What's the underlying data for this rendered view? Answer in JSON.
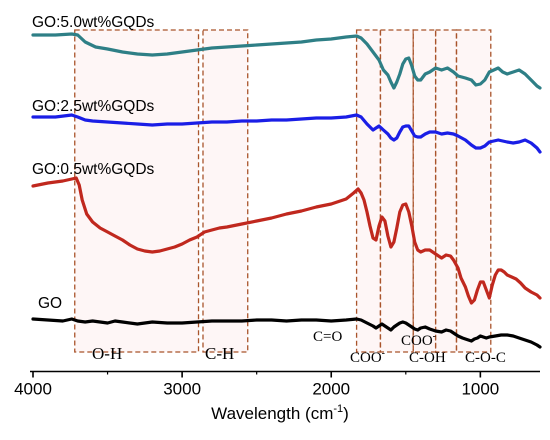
{
  "chart_data": {
    "type": "line",
    "title": "",
    "xlabel": "Wavelength (cm",
    "xlabel_sup": "-1",
    "xlabel_close": ")",
    "ylabel": "",
    "xlim": [
      4000,
      600
    ],
    "x_reversed": true,
    "x_ticks": [
      4000,
      3000,
      2000,
      1000
    ],
    "x_tick_labels": [
      "4000",
      "3000",
      "2000",
      "1000"
    ],
    "y_axis_visible": false,
    "series": [
      {
        "name": "GO:5.0wt%GQDs",
        "color": "#2e7f86",
        "points": [
          [
            4000,
            35
          ],
          [
            3850,
            35
          ],
          [
            3740,
            34
          ],
          [
            3700,
            35
          ],
          [
            3650,
            42
          ],
          [
            3580,
            47
          ],
          [
            3500,
            49
          ],
          [
            3400,
            52
          ],
          [
            3300,
            54
          ],
          [
            3200,
            55
          ],
          [
            3100,
            54
          ],
          [
            3000,
            52
          ],
          [
            2900,
            50
          ],
          [
            2800,
            48
          ],
          [
            2700,
            47
          ],
          [
            2600,
            46
          ],
          [
            2500,
            45
          ],
          [
            2400,
            44
          ],
          [
            2300,
            43
          ],
          [
            2200,
            42
          ],
          [
            2100,
            40
          ],
          [
            2000,
            39
          ],
          [
            1900,
            37
          ],
          [
            1830,
            36
          ],
          [
            1800,
            38
          ],
          [
            1760,
            44
          ],
          [
            1720,
            52
          ],
          [
            1700,
            56
          ],
          [
            1680,
            60
          ],
          [
            1650,
            70
          ],
          [
            1620,
            75
          ],
          [
            1600,
            82
          ],
          [
            1580,
            88
          ],
          [
            1560,
            82
          ],
          [
            1540,
            74
          ],
          [
            1520,
            64
          ],
          [
            1500,
            59
          ],
          [
            1480,
            58
          ],
          [
            1460,
            66
          ],
          [
            1440,
            76
          ],
          [
            1420,
            80
          ],
          [
            1400,
            80
          ],
          [
            1370,
            74
          ],
          [
            1340,
            72
          ],
          [
            1300,
            68
          ],
          [
            1260,
            70
          ],
          [
            1220,
            68
          ],
          [
            1180,
            72
          ],
          [
            1150,
            76
          ],
          [
            1100,
            78
          ],
          [
            1060,
            80
          ],
          [
            1030,
            85
          ],
          [
            1000,
            84
          ],
          [
            970,
            80
          ],
          [
            940,
            72
          ],
          [
            910,
            70
          ],
          [
            880,
            68
          ],
          [
            850,
            72
          ],
          [
            820,
            74
          ],
          [
            780,
            72
          ],
          [
            740,
            70
          ],
          [
            700,
            74
          ],
          [
            660,
            80
          ],
          [
            620,
            86
          ],
          [
            600,
            88
          ]
        ]
      },
      {
        "name": "GO:2.5wt%GQDs",
        "color": "#1a1ee6",
        "points": [
          [
            4000,
            117
          ],
          [
            3850,
            117
          ],
          [
            3740,
            115
          ],
          [
            3700,
            117
          ],
          [
            3650,
            120
          ],
          [
            3600,
            121
          ],
          [
            3500,
            122
          ],
          [
            3400,
            123
          ],
          [
            3300,
            124
          ],
          [
            3200,
            125
          ],
          [
            3100,
            124
          ],
          [
            3000,
            124
          ],
          [
            2900,
            123
          ],
          [
            2800,
            122
          ],
          [
            2700,
            122
          ],
          [
            2600,
            121
          ],
          [
            2500,
            121
          ],
          [
            2400,
            120
          ],
          [
            2300,
            120
          ],
          [
            2200,
            119
          ],
          [
            2100,
            118
          ],
          [
            2000,
            118
          ],
          [
            1900,
            117
          ],
          [
            1830,
            115
          ],
          [
            1800,
            117
          ],
          [
            1760,
            124
          ],
          [
            1720,
            130
          ],
          [
            1700,
            128
          ],
          [
            1680,
            126
          ],
          [
            1650,
            130
          ],
          [
            1620,
            134
          ],
          [
            1600,
            138
          ],
          [
            1580,
            140
          ],
          [
            1560,
            138
          ],
          [
            1540,
            132
          ],
          [
            1520,
            127
          ],
          [
            1500,
            126
          ],
          [
            1480,
            126
          ],
          [
            1460,
            131
          ],
          [
            1440,
            136
          ],
          [
            1420,
            137
          ],
          [
            1400,
            137
          ],
          [
            1370,
            134
          ],
          [
            1340,
            132
          ],
          [
            1300,
            132
          ],
          [
            1260,
            134
          ],
          [
            1220,
            133
          ],
          [
            1180,
            134
          ],
          [
            1150,
            136
          ],
          [
            1100,
            140
          ],
          [
            1060,
            145
          ],
          [
            1030,
            148
          ],
          [
            1000,
            148
          ],
          [
            970,
            146
          ],
          [
            940,
            142
          ],
          [
            910,
            141
          ],
          [
            880,
            140
          ],
          [
            850,
            141
          ],
          [
            820,
            142
          ],
          [
            780,
            143
          ],
          [
            740,
            142
          ],
          [
            700,
            140
          ],
          [
            660,
            143
          ],
          [
            620,
            148
          ],
          [
            600,
            152
          ]
        ]
      },
      {
        "name": "GO:0.5wt%GQDs",
        "color": "#c0281e",
        "points": [
          [
            4000,
            186
          ],
          [
            3900,
            183
          ],
          [
            3800,
            181
          ],
          [
            3740,
            179
          ],
          [
            3710,
            178
          ],
          [
            3690,
            185
          ],
          [
            3670,
            200
          ],
          [
            3640,
            214
          ],
          [
            3600,
            222
          ],
          [
            3550,
            228
          ],
          [
            3500,
            232
          ],
          [
            3450,
            236
          ],
          [
            3400,
            240
          ],
          [
            3350,
            245
          ],
          [
            3300,
            249
          ],
          [
            3250,
            251
          ],
          [
            3200,
            252
          ],
          [
            3150,
            251
          ],
          [
            3100,
            249
          ],
          [
            3050,
            247
          ],
          [
            3000,
            244
          ],
          [
            2950,
            240
          ],
          [
            2900,
            237
          ],
          [
            2850,
            232
          ],
          [
            2800,
            230
          ],
          [
            2750,
            228
          ],
          [
            2700,
            227
          ],
          [
            2600,
            224
          ],
          [
            2500,
            221
          ],
          [
            2400,
            218
          ],
          [
            2300,
            214
          ],
          [
            2200,
            211
          ],
          [
            2100,
            207
          ],
          [
            2000,
            204
          ],
          [
            1900,
            199
          ],
          [
            1850,
            193
          ],
          [
            1820,
            189
          ],
          [
            1800,
            193
          ],
          [
            1780,
            200
          ],
          [
            1760,
            212
          ],
          [
            1740,
            226
          ],
          [
            1720,
            238
          ],
          [
            1700,
            240
          ],
          [
            1680,
            226
          ],
          [
            1660,
            217
          ],
          [
            1640,
            221
          ],
          [
            1620,
            236
          ],
          [
            1600,
            247
          ],
          [
            1580,
            242
          ],
          [
            1560,
            228
          ],
          [
            1540,
            212
          ],
          [
            1520,
            205
          ],
          [
            1500,
            204
          ],
          [
            1480,
            212
          ],
          [
            1460,
            226
          ],
          [
            1440,
            242
          ],
          [
            1420,
            250
          ],
          [
            1400,
            252
          ],
          [
            1370,
            250
          ],
          [
            1340,
            250
          ],
          [
            1300,
            254
          ],
          [
            1260,
            258
          ],
          [
            1230,
            255
          ],
          [
            1200,
            256
          ],
          [
            1180,
            260
          ],
          [
            1150,
            268
          ],
          [
            1130,
            278
          ],
          [
            1100,
            287
          ],
          [
            1080,
            296
          ],
          [
            1060,
            303
          ],
          [
            1040,
            300
          ],
          [
            1020,
            290
          ],
          [
            1000,
            282
          ],
          [
            980,
            282
          ],
          [
            960,
            290
          ],
          [
            940,
            298
          ],
          [
            920,
            285
          ],
          [
            900,
            275
          ],
          [
            880,
            270
          ],
          [
            860,
            270
          ],
          [
            840,
            272
          ],
          [
            820,
            275
          ],
          [
            790,
            277
          ],
          [
            760,
            279
          ],
          [
            730,
            283
          ],
          [
            700,
            288
          ],
          [
            660,
            292
          ],
          [
            620,
            295
          ],
          [
            600,
            298
          ]
        ]
      },
      {
        "name": "GO",
        "color": "#000000",
        "points": [
          [
            4000,
            319
          ],
          [
            3900,
            320
          ],
          [
            3800,
            321
          ],
          [
            3740,
            319
          ],
          [
            3700,
            321
          ],
          [
            3650,
            322
          ],
          [
            3600,
            321
          ],
          [
            3500,
            323
          ],
          [
            3450,
            321
          ],
          [
            3400,
            322
          ],
          [
            3300,
            324
          ],
          [
            3200,
            322
          ],
          [
            3100,
            323
          ],
          [
            3000,
            323
          ],
          [
            2900,
            322
          ],
          [
            2800,
            321
          ],
          [
            2700,
            321
          ],
          [
            2600,
            321
          ],
          [
            2500,
            320
          ],
          [
            2400,
            320
          ],
          [
            2300,
            321
          ],
          [
            2200,
            320
          ],
          [
            2100,
            320
          ],
          [
            2000,
            321
          ],
          [
            1900,
            320
          ],
          [
            1830,
            319
          ],
          [
            1800,
            320
          ],
          [
            1760,
            323
          ],
          [
            1720,
            326
          ],
          [
            1700,
            328
          ],
          [
            1680,
            326
          ],
          [
            1660,
            324
          ],
          [
            1640,
            326
          ],
          [
            1620,
            328
          ],
          [
            1600,
            330
          ],
          [
            1580,
            327
          ],
          [
            1560,
            325
          ],
          [
            1540,
            323
          ],
          [
            1520,
            322
          ],
          [
            1500,
            323
          ],
          [
            1480,
            325
          ],
          [
            1460,
            327
          ],
          [
            1440,
            329
          ],
          [
            1420,
            330
          ],
          [
            1400,
            328
          ],
          [
            1370,
            327
          ],
          [
            1340,
            329
          ],
          [
            1300,
            331
          ],
          [
            1260,
            332
          ],
          [
            1230,
            330
          ],
          [
            1200,
            331
          ],
          [
            1180,
            333
          ],
          [
            1150,
            336
          ],
          [
            1120,
            338
          ],
          [
            1100,
            339
          ],
          [
            1080,
            340
          ],
          [
            1060,
            341
          ],
          [
            1040,
            339
          ],
          [
            1020,
            338
          ],
          [
            1000,
            336
          ],
          [
            980,
            337
          ],
          [
            960,
            338
          ],
          [
            940,
            337
          ],
          [
            900,
            336
          ],
          [
            860,
            335
          ],
          [
            820,
            335
          ],
          [
            780,
            336
          ],
          [
            740,
            338
          ],
          [
            700,
            340
          ],
          [
            660,
            342
          ],
          [
            620,
            345
          ],
          [
            600,
            347
          ]
        ]
      }
    ],
    "series_labels": [
      "GO:5.0wt%GQDs",
      "GO:2.5wt%GQDs",
      "GO:0.5wt%GQDs",
      "GO"
    ],
    "bands": [
      {
        "label": "O-H",
        "sup": "",
        "x_from": 3720,
        "x_to": 2890
      },
      {
        "label": "C-H",
        "sup": "",
        "x_from": 2860,
        "x_to": 2560
      },
      {
        "label": "C=O",
        "sup": "",
        "x_from": 1830,
        "x_to": 1670
      },
      {
        "label": "COO",
        "sup": "-",
        "x_from": 1670,
        "x_to": 1450
      },
      {
        "label": "COO",
        "sup": "-",
        "x_from": 1450,
        "x_to": 1300
      },
      {
        "label": "C-OH",
        "sup": "",
        "x_from": 1300,
        "x_to": 1160
      },
      {
        "label": "C-O-C",
        "sup": "",
        "x_from": 1160,
        "x_to": 930
      }
    ]
  }
}
